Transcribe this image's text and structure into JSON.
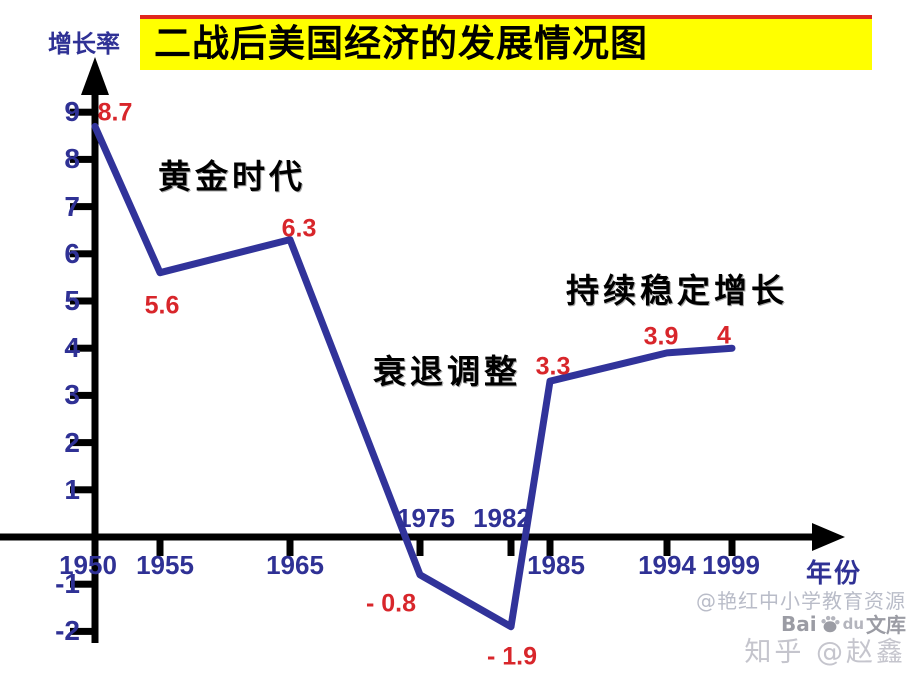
{
  "header": {
    "title": "二战后美国经济的发展情况图",
    "y_axis_title": "增长率",
    "x_axis_title": "年份"
  },
  "chart_data": {
    "type": "line",
    "title": "二战后美国经济的发展情况图",
    "ylabel": "增长率",
    "xlabel": "年份",
    "grid": false,
    "legend": null,
    "ylim": [
      -2.5,
      9.5
    ],
    "x": [
      1950,
      1955,
      1965,
      1975,
      1982,
      1985,
      1994,
      1999
    ],
    "values": [
      8.7,
      5.6,
      6.3,
      -0.8,
      -1.9,
      3.3,
      3.9,
      4
    ],
    "point_labels": [
      "8.7",
      "5.6",
      "6.3",
      "- 0.8",
      "- 1.9",
      "3.3",
      "3.9",
      "4"
    ],
    "y_ticks": [
      9,
      8,
      7,
      6,
      5,
      4,
      3,
      2,
      1,
      -1,
      -2
    ],
    "x_ticks": [
      {
        "label": "1950",
        "year": 1950,
        "tick": false,
        "side": "below"
      },
      {
        "label": "1955",
        "year": 1955,
        "tick": true,
        "side": "below"
      },
      {
        "label": "1965",
        "year": 1965,
        "tick": true,
        "side": "below"
      },
      {
        "label": "1975",
        "year": 1975,
        "tick": true,
        "side": "above"
      },
      {
        "label": "1982",
        "year": 1982,
        "tick": true,
        "side": "above"
      },
      {
        "label": "1985",
        "year": 1985,
        "tick": true,
        "side": "below"
      },
      {
        "label": "1994",
        "year": 1994,
        "tick": true,
        "side": "below"
      },
      {
        "label": "1999",
        "year": 1999,
        "tick": true,
        "side": "below"
      }
    ],
    "annotations": [
      "黄金时代",
      "衰退调整",
      "持续稳定增长"
    ],
    "colors": {
      "line": "#31339a",
      "point_labels": "#d8262b",
      "axis": "#000000",
      "tick_text": "#2f3195",
      "title_bg": "#ffff00",
      "title_border": "#e0271d"
    }
  },
  "watermarks": {
    "credit": "@艳红中小学教育资源",
    "baidu_bai": "Bai",
    "baidu_du": "du",
    "baidu_wenku": "文库",
    "zhihu": "知乎 @赵鑫"
  }
}
